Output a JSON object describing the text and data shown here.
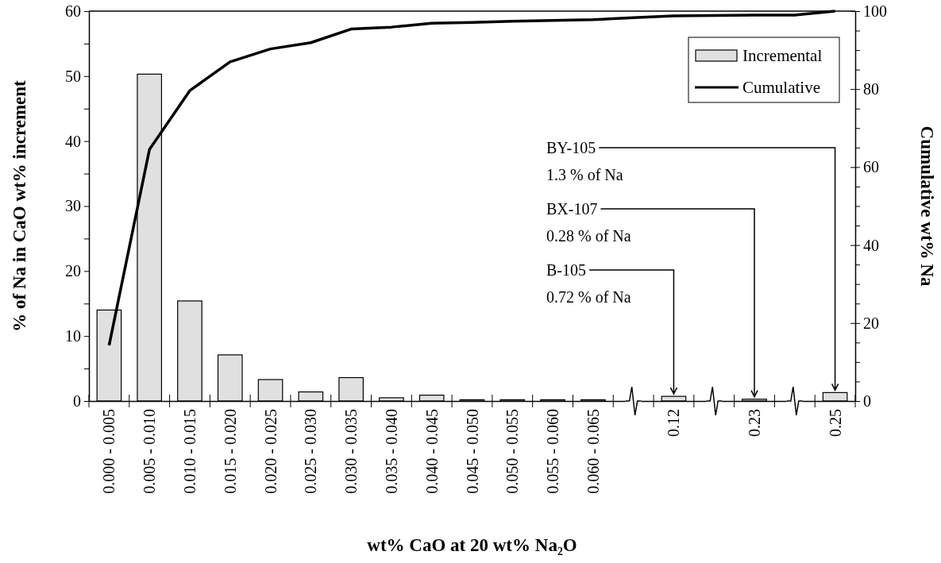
{
  "chart_data": {
    "type": "bar",
    "xlabel": "wt% CaO at 20 wt% Na₂O",
    "ylabel": "% of Na in CaO wt% increment",
    "y2label": "Cumulative wt% Na",
    "categories": [
      "0.000 - 0.005",
      "0.005 - 0.010",
      "0.010 - 0.015",
      "0.015 - 0.020",
      "0.020 - 0.025",
      "0.025 - 0.030",
      "0.030 - 0.035",
      "0.035 - 0.040",
      "0.040 - 0.045",
      "0.045 - 0.050",
      "0.050 - 0.055",
      "0.055 - 0.060",
      "0.060 - 0.065",
      null,
      "0.12",
      null,
      "0.23",
      null,
      "0.25"
    ],
    "series": [
      {
        "name": "Incremental",
        "color": "#e0e0e0",
        "values": [
          14,
          50.3,
          15.4,
          7.1,
          3.3,
          1.4,
          3.6,
          0.5,
          0.9,
          0.2,
          0.2,
          0.2,
          0.2,
          null,
          0.72,
          null,
          0.28,
          null,
          1.3
        ]
      },
      {
        "name": "Cumulative",
        "type": "line",
        "axis": "y2",
        "color": "#000000",
        "values": [
          14.3,
          64.5,
          79.6,
          87.0,
          90.3,
          91.9,
          95.4,
          95.9,
          96.9,
          97.1,
          97.4,
          97.6,
          97.8,
          98.3,
          98.8,
          98.9,
          99.0,
          99.0,
          100
        ]
      }
    ],
    "ylim": [
      0,
      60
    ],
    "yticks": [
      0,
      {
        "value": 5,
        "label": null
      },
      10,
      {
        "value": 15,
        "label": null
      },
      20,
      {
        "value": 25,
        "label": null
      },
      30,
      {
        "value": 35,
        "label": null
      },
      40,
      {
        "value": 45,
        "label": null
      },
      50,
      {
        "value": 55,
        "label": null
      },
      60
    ],
    "y2lim": [
      0,
      100
    ],
    "y2ticks": [
      0,
      {
        "value": 5,
        "label": null
      },
      {
        "value": 10,
        "label": null
      },
      {
        "value": 15,
        "label": null
      },
      20,
      {
        "value": 25,
        "label": null
      },
      {
        "value": 30,
        "label": null
      },
      {
        "value": 35,
        "label": null
      },
      40,
      {
        "value": 45,
        "label": null
      },
      {
        "value": 50,
        "label": null
      },
      {
        "value": 55,
        "label": null
      },
      60,
      {
        "value": 65,
        "label": null
      },
      {
        "value": 70,
        "label": null
      },
      {
        "value": 75,
        "label": null
      },
      80,
      {
        "value": 85,
        "label": null
      },
      {
        "value": 90,
        "label": null
      },
      {
        "value": 95,
        "label": null
      },
      100
    ],
    "annotations": [
      {
        "text": "BY-105\n1.3 % of Na",
        "x": "0.25",
        "y": 1.3
      },
      {
        "text": "BX-107\n0.28 % of Na",
        "x": "0.23",
        "y": 0.28
      },
      {
        "text": "B-105\n0.72 % of Na",
        "x": "0.12",
        "y": 0.72
      }
    ],
    "legend": "top right",
    "grid": false,
    "marker": "none",
    "line_style": "solid"
  }
}
